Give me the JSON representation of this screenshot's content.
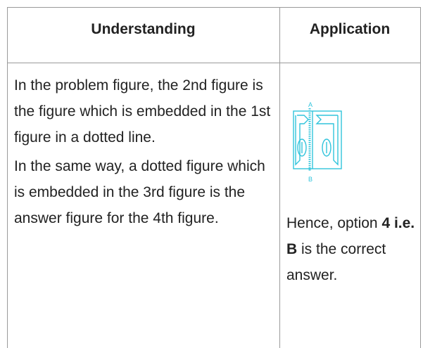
{
  "table": {
    "headers": [
      "Understanding",
      "Application"
    ],
    "rows": [
      [
        {
          "paragraphs": [
            "In the problem figure, the 2nd figure is the figure which is embedded in the 1st figure in a dotted line.",
            "In the same way, a dotted figure which is embedded in the 3rd figure is the answer figure for the 4th figure."
          ]
        },
        {
          "figure_labels": [
            "A",
            "B"
          ],
          "parts": [
            {
              "text": "Hence, option ",
              "bold": false
            },
            {
              "text": "4",
              "bold": true
            },
            {
              "text": " i.e. B",
              "bold": true
            },
            {
              "text": " is the correct answer.",
              "bold": false
            }
          ]
        }
      ]
    ]
  }
}
